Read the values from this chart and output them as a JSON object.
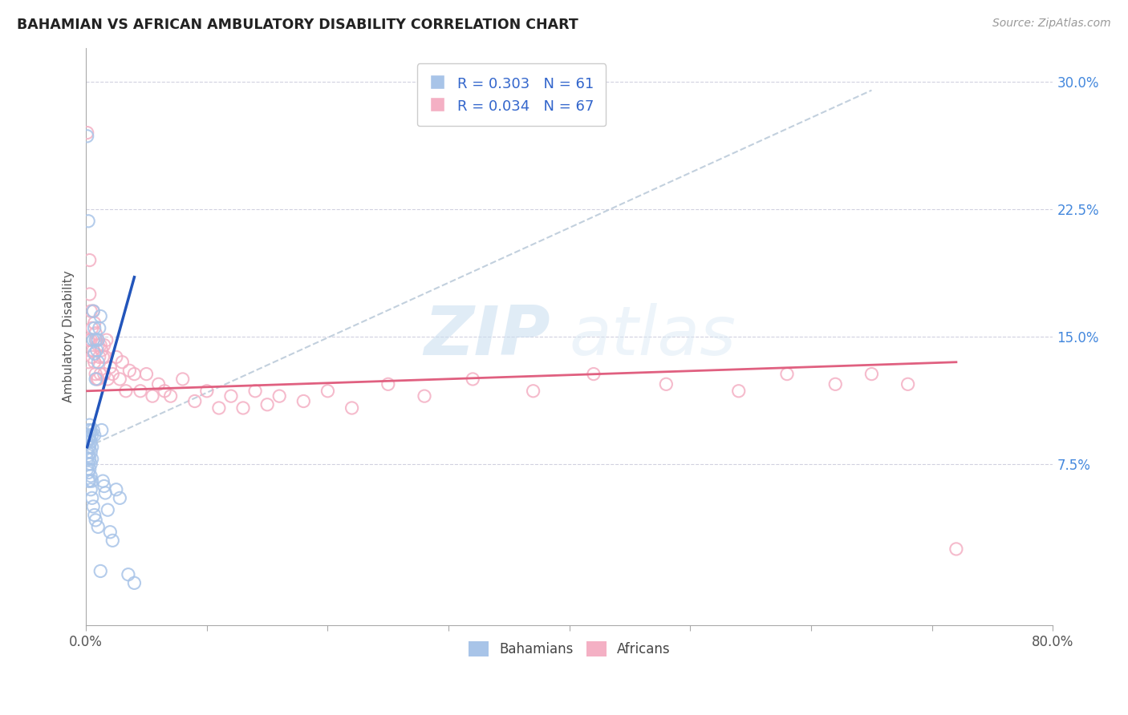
{
  "title": "BAHAMIAN VS AFRICAN AMBULATORY DISABILITY CORRELATION CHART",
  "source": "Source: ZipAtlas.com",
  "ylabel": "Ambulatory Disability",
  "ytick_labels": [
    "7.5%",
    "15.0%",
    "22.5%",
    "30.0%"
  ],
  "bahamian_color": "#a8c4e8",
  "african_color": "#f4b0c4",
  "bahamian_line_color": "#2255bb",
  "african_line_color": "#e06080",
  "dashed_line_color": "#b8c8d8",
  "watermark_zip": "ZIP",
  "watermark_atlas": "atlas",
  "bahamian_points_x": [
    0.001,
    0.001,
    0.001,
    0.001,
    0.001,
    0.002,
    0.002,
    0.002,
    0.002,
    0.002,
    0.002,
    0.002,
    0.003,
    0.003,
    0.003,
    0.003,
    0.003,
    0.003,
    0.004,
    0.004,
    0.004,
    0.004,
    0.004,
    0.005,
    0.005,
    0.005,
    0.005,
    0.006,
    0.006,
    0.006,
    0.007,
    0.007,
    0.007,
    0.008,
    0.008,
    0.009,
    0.01,
    0.01,
    0.011,
    0.012,
    0.013,
    0.014,
    0.015,
    0.016,
    0.018,
    0.02,
    0.022,
    0.025,
    0.028,
    0.035,
    0.04,
    0.001,
    0.002,
    0.003,
    0.004,
    0.005,
    0.006,
    0.007,
    0.008,
    0.01,
    0.012
  ],
  "bahamian_points_y": [
    0.092,
    0.088,
    0.082,
    0.078,
    0.072,
    0.095,
    0.09,
    0.085,
    0.08,
    0.075,
    0.07,
    0.065,
    0.098,
    0.092,
    0.085,
    0.078,
    0.072,
    0.065,
    0.095,
    0.088,
    0.082,
    0.075,
    0.068,
    0.092,
    0.085,
    0.078,
    0.065,
    0.165,
    0.148,
    0.095,
    0.155,
    0.14,
    0.092,
    0.148,
    0.125,
    0.142,
    0.148,
    0.135,
    0.155,
    0.162,
    0.095,
    0.065,
    0.062,
    0.058,
    0.048,
    0.035,
    0.03,
    0.06,
    0.055,
    0.01,
    0.005,
    0.268,
    0.218,
    0.09,
    0.06,
    0.055,
    0.05,
    0.045,
    0.042,
    0.038,
    0.012
  ],
  "african_points_x": [
    0.001,
    0.002,
    0.002,
    0.003,
    0.003,
    0.004,
    0.004,
    0.005,
    0.005,
    0.006,
    0.006,
    0.007,
    0.007,
    0.008,
    0.008,
    0.009,
    0.009,
    0.01,
    0.01,
    0.011,
    0.012,
    0.012,
    0.013,
    0.014,
    0.015,
    0.015,
    0.016,
    0.017,
    0.018,
    0.02,
    0.022,
    0.025,
    0.028,
    0.03,
    0.033,
    0.036,
    0.04,
    0.045,
    0.05,
    0.055,
    0.06,
    0.065,
    0.07,
    0.08,
    0.09,
    0.1,
    0.11,
    0.12,
    0.13,
    0.14,
    0.15,
    0.16,
    0.18,
    0.2,
    0.22,
    0.25,
    0.28,
    0.32,
    0.37,
    0.42,
    0.48,
    0.54,
    0.58,
    0.62,
    0.65,
    0.68,
    0.72
  ],
  "african_points_y": [
    0.27,
    0.148,
    0.135,
    0.195,
    0.175,
    0.165,
    0.148,
    0.155,
    0.138,
    0.165,
    0.142,
    0.158,
    0.135,
    0.152,
    0.128,
    0.148,
    0.125,
    0.145,
    0.125,
    0.138,
    0.145,
    0.128,
    0.142,
    0.138,
    0.145,
    0.128,
    0.138,
    0.148,
    0.125,
    0.132,
    0.128,
    0.138,
    0.125,
    0.135,
    0.118,
    0.13,
    0.128,
    0.118,
    0.128,
    0.115,
    0.122,
    0.118,
    0.115,
    0.125,
    0.112,
    0.118,
    0.108,
    0.115,
    0.108,
    0.118,
    0.11,
    0.115,
    0.112,
    0.118,
    0.108,
    0.122,
    0.115,
    0.125,
    0.118,
    0.128,
    0.122,
    0.118,
    0.128,
    0.122,
    0.128,
    0.122,
    0.025
  ],
  "xlim": [
    0.0,
    0.8
  ],
  "ylim": [
    -0.02,
    0.32
  ],
  "yticks": [
    0.075,
    0.15,
    0.225,
    0.3
  ],
  "xticks": [
    0.0,
    0.1,
    0.2,
    0.3,
    0.4,
    0.5,
    0.6,
    0.7,
    0.8
  ],
  "bahamian_line_x": [
    0.001,
    0.04
  ],
  "bahamian_line_y": [
    0.085,
    0.185
  ],
  "african_line_x": [
    0.001,
    0.72
  ],
  "african_line_y": [
    0.118,
    0.135
  ],
  "dashed_line_x": [
    0.001,
    0.65
  ],
  "dashed_line_y": [
    0.085,
    0.295
  ]
}
